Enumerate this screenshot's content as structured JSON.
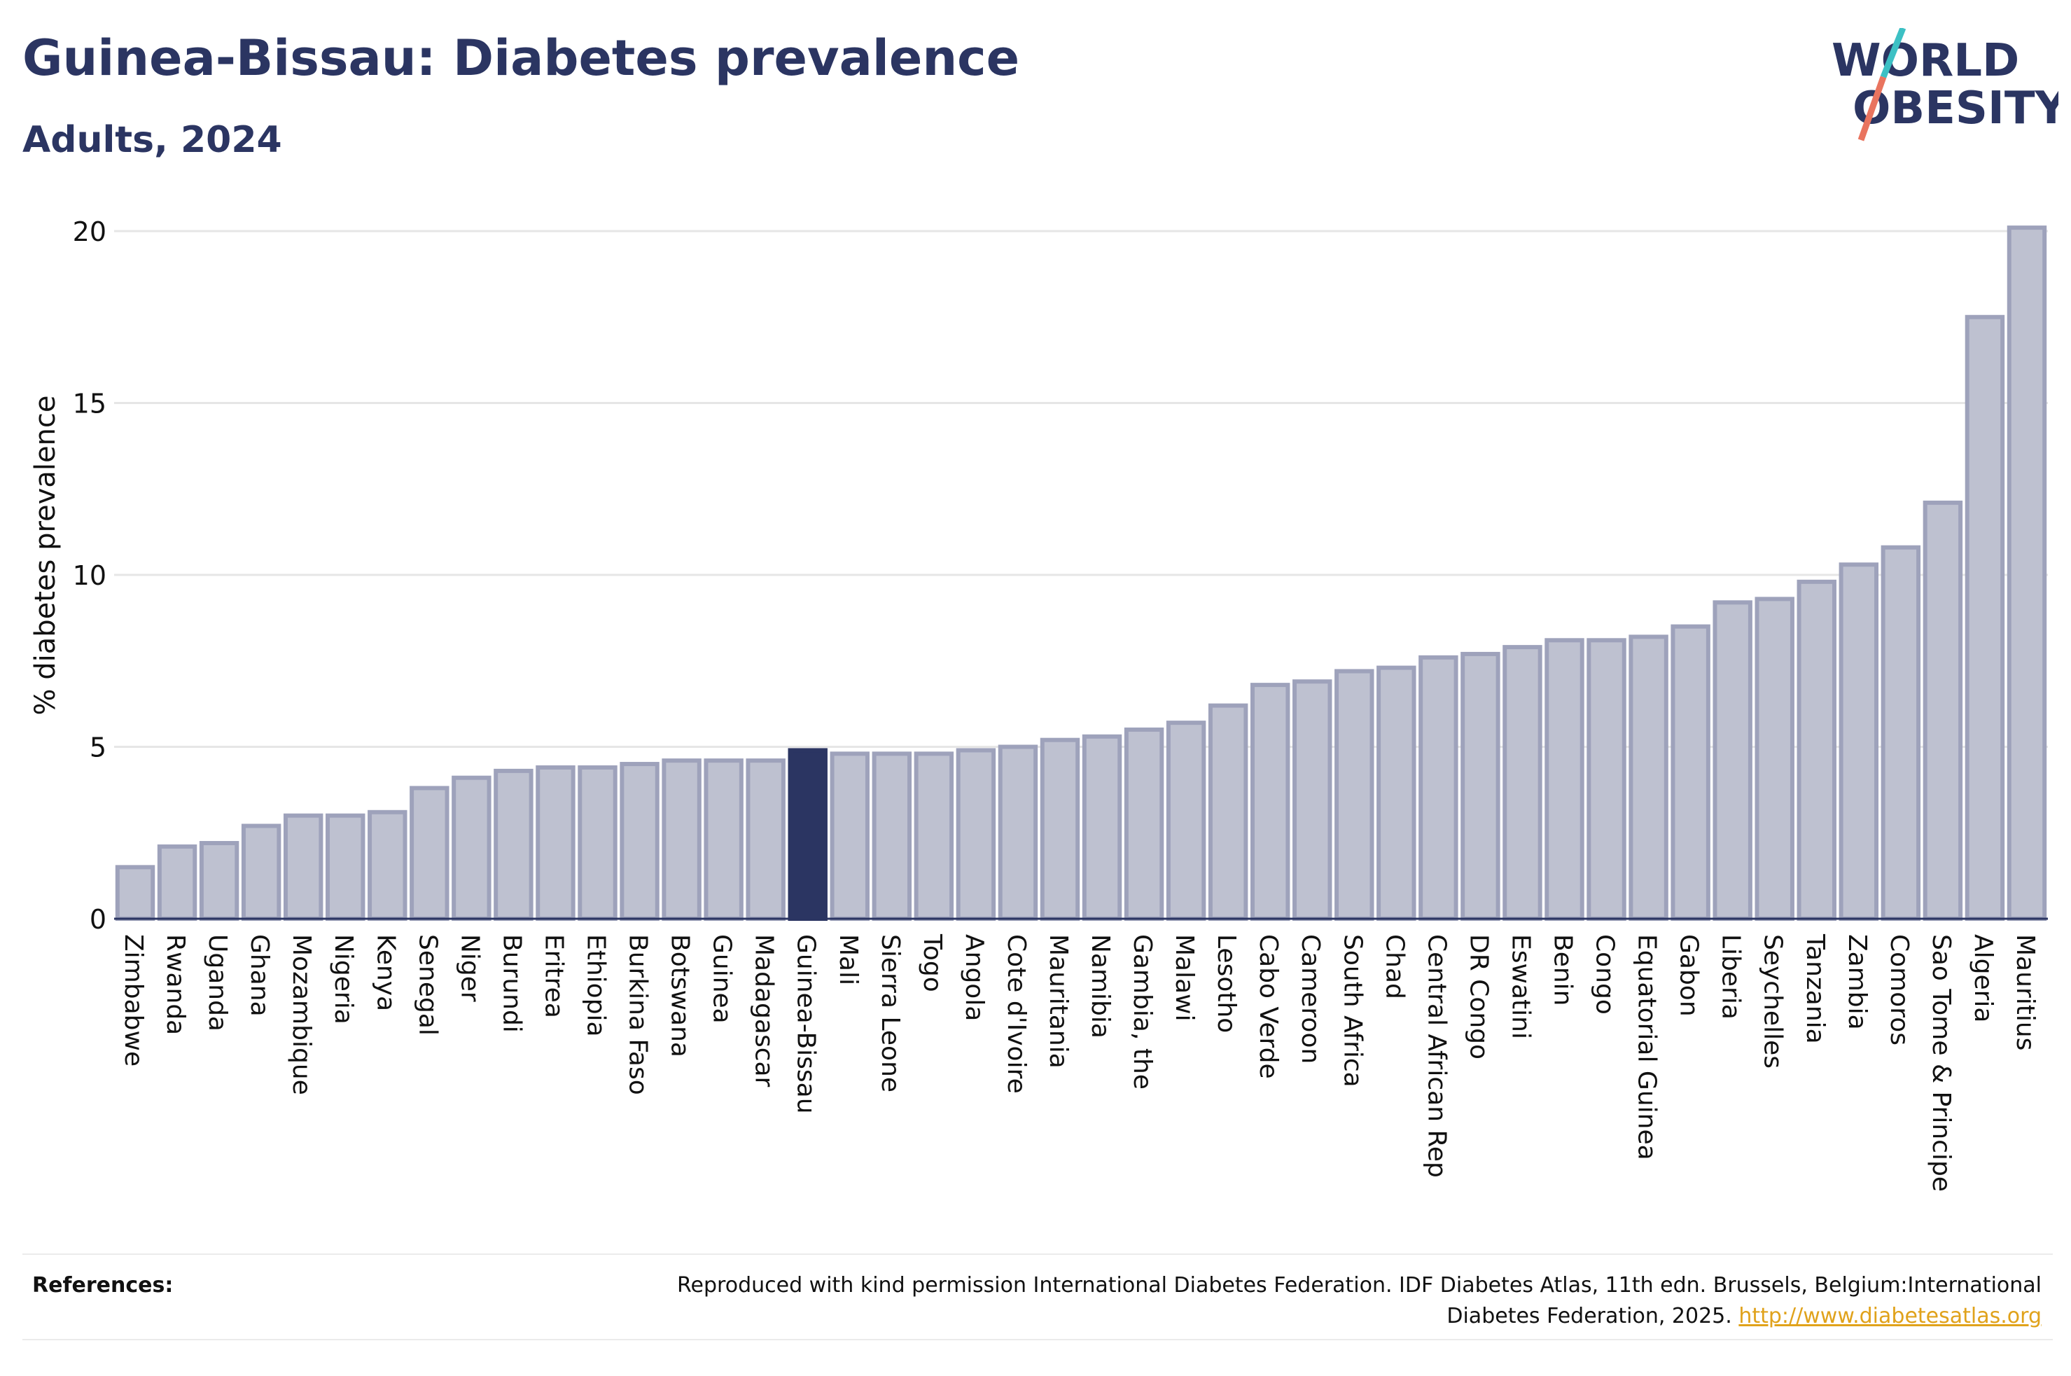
{
  "header": {
    "title": "Guinea-Bissau: Diabetes prevalence",
    "subtitle": "Adults, 2024"
  },
  "logo": {
    "line1": "WORLD",
    "line2": "OBESITY",
    "colors": {
      "text": "#2b3562",
      "slash_top": "#3cc0c4",
      "slash_bottom": "#e9745f"
    }
  },
  "references": {
    "label": "References:",
    "text": "Reproduced with kind permission International Diabetes Federation. IDF Diabetes Atlas, 11th edn. Brussels, Belgium:International Diabetes Federation, 2025.",
    "link": "http://www.diabetesatlas.org"
  },
  "colors": {
    "bar_fill": "#bec1d0",
    "bar_stroke": "#9ea2bb",
    "highlight": "#2b3562",
    "grid": "#e6e6e6",
    "axis": "#2b3562"
  },
  "chart_data": {
    "type": "bar",
    "ylabel": "% diabetes prevalence",
    "ylim": [
      0,
      20
    ],
    "yticks": [
      0,
      5,
      10,
      15,
      20
    ],
    "grid": true,
    "highlight": "Guinea-Bissau",
    "categories": [
      "Zimbabwe",
      "Rwanda",
      "Uganda",
      "Ghana",
      "Mozambique",
      "Nigeria",
      "Kenya",
      "Senegal",
      "Niger",
      "Burundi",
      "Eritrea",
      "Ethiopia",
      "Burkina Faso",
      "Botswana",
      "Guinea",
      "Madagascar",
      "Guinea-Bissau",
      "Mali",
      "Sierra Leone",
      "Togo",
      "Angola",
      "Cote d'Ivoire",
      "Mauritania",
      "Namibia",
      "Gambia, the",
      "Malawi",
      "Lesotho",
      "Cabo Verde",
      "Cameroon",
      "South Africa",
      "Chad",
      "Central African Rep",
      "DR Congo",
      "Eswatini",
      "Benin",
      "Congo",
      "Equatorial Guinea",
      "Gabon",
      "Liberia",
      "Seychelles",
      "Tanzania",
      "Zambia",
      "Comoros",
      "Sao Tome & Principe",
      "Algeria",
      "Mauritius"
    ],
    "values": [
      1.5,
      2.1,
      2.2,
      2.7,
      3.0,
      3.0,
      3.1,
      3.8,
      4.1,
      4.3,
      4.4,
      4.4,
      4.5,
      4.6,
      4.6,
      4.6,
      4.9,
      4.8,
      4.8,
      4.8,
      4.9,
      5.0,
      5.2,
      5.3,
      5.5,
      5.7,
      6.2,
      6.8,
      6.9,
      7.2,
      7.3,
      7.6,
      7.7,
      7.9,
      8.1,
      8.1,
      8.2,
      8.5,
      9.2,
      9.3,
      9.8,
      10.3,
      10.8,
      12.1,
      17.5,
      20.1
    ]
  }
}
